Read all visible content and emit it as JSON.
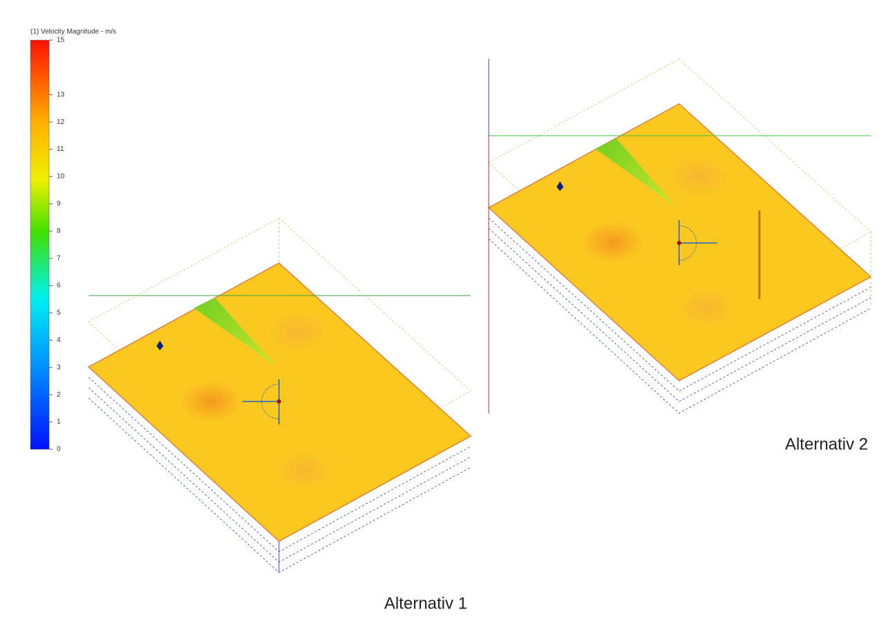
{
  "legend": {
    "title": "(1) Velocity Magnitude - m/s",
    "lim": [
      0,
      15
    ],
    "ticks": [
      0,
      1,
      2,
      3,
      4,
      5,
      6,
      7,
      8,
      9,
      10,
      11,
      12,
      13,
      15
    ]
  },
  "panels": [
    {
      "label": "Alternativ 1"
    },
    {
      "label": "Alternativ 2"
    }
  ]
}
